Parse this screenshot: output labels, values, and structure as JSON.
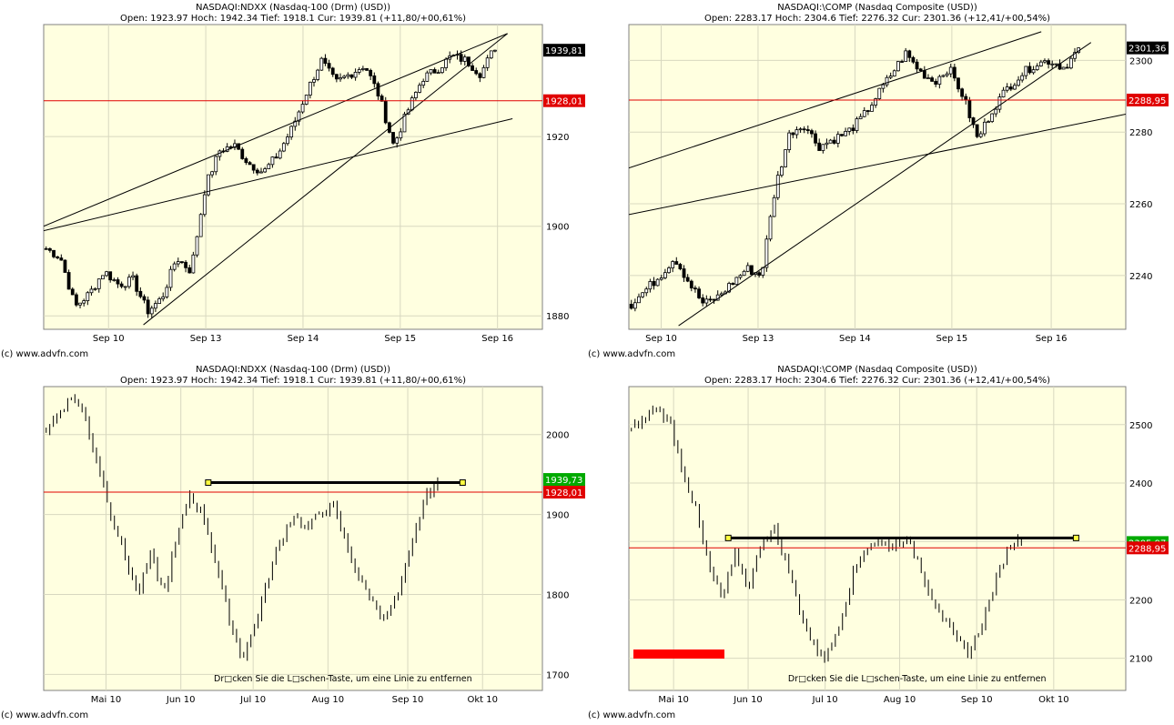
{
  "copyright": "(c) www.advfn.com",
  "colors": {
    "plot_bg": "#ffffe0",
    "grid": "#d8d8c0",
    "candle": "#000000",
    "red_line": "#e00000",
    "trend": "#000000",
    "badge_current": "#000000",
    "badge_red": "#e00000",
    "badge_green": "#00aa00",
    "marker_yellow": "#ffff40",
    "red_bar": "#ff0000"
  },
  "panels": [
    {
      "title": "NASDAQI:NDXX (Nasdaq-100 (Drm) (USD))",
      "subtitle": "Open: 1923.97 Hoch: 1942.34 Tief: 1918.1 Cur: 1939.81 (+11,80/+00,61%)",
      "copyright": "(c) www.advfn.com"
    },
    {
      "title": "NASDAQI:\\COMP (Nasdaq Composite (USD))",
      "subtitle": "Open: 2283.17 Hoch: 2304.6 Tief: 2276.32 Cur: 2301.36 (+12,41/+00,54%)",
      "copyright": "(c) www.advfn.com"
    },
    {
      "title": "NASDAQI:NDXX (Nasdaq-100 (Drm) (USD))",
      "subtitle": "Open: 1923.97 Hoch: 1942.34 Tief: 1918.1 Cur: 1939.81 (+11,80/+00,61%)",
      "copyright": "(c) www.advfn.com",
      "note": "Dr□cken Sie die L□schen-Taste, um eine Linie zu entfernen"
    },
    {
      "title": "NASDAQI:\\COMP (Nasdaq Composite (USD))",
      "subtitle": "Open: 2283.17 Hoch: 2304.6 Tief: 2276.32 Cur: 2301.36 (+12,41/+00,54%)",
      "copyright": "(c) www.advfn.com",
      "note": "Dr□cken Sie die L□schen-Taste, um eine Linie zu entfernen"
    }
  ],
  "chart_data": [
    {
      "type": "candlestick",
      "title": "NASDAQI:NDXX (Nasdaq-100 (Drm) (USD))",
      "subtitle": "Open: 1923.97 Hoch: 1942.34 Tief: 1918.1 Cur: 1939.81 (+11,80/+00,61%)",
      "x_ticks": [
        "Sep 10",
        "Sep 13",
        "Sep 14",
        "Sep 15",
        "Sep 16"
      ],
      "y_ticks": [
        1880,
        1900,
        1920
      ],
      "ylim": [
        1877,
        1945
      ],
      "grid": true,
      "current_value": "1939,81",
      "red_line": {
        "value": 1928.01,
        "label": "1928,01"
      },
      "price_path": [
        1895,
        1893,
        1882,
        1885,
        1890,
        1887,
        1888,
        1881,
        1884,
        1893,
        1890,
        1909,
        1917,
        1918,
        1914,
        1912,
        1916,
        1922,
        1930,
        1937,
        1932,
        1934,
        1936,
        1929,
        1918,
        1926,
        1933,
        1935,
        1938,
        1937,
        1934,
        1940
      ],
      "trendlines": [
        {
          "x0": 0.0,
          "y0": 1900,
          "x1": 0.93,
          "y1": 1943
        },
        {
          "x0": 0.0,
          "y0": 1899,
          "x1": 0.94,
          "y1": 1924
        },
        {
          "x0": 0.2,
          "y0": 1878,
          "x1": 0.93,
          "y1": 1943
        }
      ]
    },
    {
      "type": "candlestick",
      "title": "NASDAQI:\\COMP (Nasdaq Composite (USD))",
      "subtitle": "Open: 2283.17 Hoch: 2304.6 Tief: 2276.32 Cur: 2301.36 (+12,41/+00,54%)",
      "x_ticks": [
        "Sep 10",
        "Sep 13",
        "Sep 14",
        "Sep 15",
        "Sep 16"
      ],
      "y_ticks": [
        2240,
        2260,
        2280,
        2300
      ],
      "ylim": [
        2225,
        2310
      ],
      "grid": true,
      "current_value": "2301,36",
      "red_line": {
        "value": 2288.95,
        "label": "2288,95"
      },
      "price_path": [
        2232,
        2236,
        2240,
        2245,
        2238,
        2232,
        2234,
        2238,
        2242,
        2240,
        2265,
        2280,
        2282,
        2276,
        2278,
        2280,
        2284,
        2290,
        2296,
        2302,
        2297,
        2294,
        2298,
        2290,
        2278,
        2286,
        2292,
        2296,
        2299,
        2300,
        2298,
        2303
      ],
      "trendlines": [
        {
          "x0": 0.0,
          "y0": 2270,
          "x1": 0.83,
          "y1": 2308
        },
        {
          "x0": 0.0,
          "y0": 2257,
          "x1": 1.0,
          "y1": 2285
        },
        {
          "x0": 0.1,
          "y0": 2226,
          "x1": 0.93,
          "y1": 2305
        }
      ]
    },
    {
      "type": "ohlc",
      "title": "NASDAQI:NDXX (Nasdaq-100 (Drm) (USD))",
      "subtitle": "Open: 1923.97 Hoch: 1942.34 Tief: 1918.1 Cur: 1939.81 (+11,80/+00,61%)",
      "x_ticks": [
        "Mai 10",
        "Jun 10",
        "Jul 10",
        "Aug 10",
        "Sep 10",
        "Okt 10"
      ],
      "y_ticks": [
        1700,
        1800,
        1900,
        2000
      ],
      "ylim": [
        1680,
        2060
      ],
      "grid": true,
      "current_value": "1939,73",
      "red_line": {
        "value": 1928.01,
        "label": "1928,01"
      },
      "horizontal_line": {
        "value": 1940,
        "x0": 0.33,
        "x1": 0.84
      },
      "price_path": [
        2005,
        2030,
        2048,
        2020,
        1960,
        1900,
        1850,
        1800,
        1850,
        1800,
        1870,
        1925,
        1900,
        1840,
        1770,
        1720,
        1760,
        1820,
        1870,
        1900,
        1880,
        1905,
        1910,
        1860,
        1820,
        1790,
        1770,
        1800,
        1860,
        1920,
        1939
      ]
    },
    {
      "type": "ohlc",
      "title": "NASDAQI:\\COMP (Nasdaq Composite (USD))",
      "subtitle": "Open: 2283.17 Hoch: 2304.6 Tief: 2276.32 Cur: 2301.36 (+12,41/+00,54%)",
      "x_ticks": [
        "Mai 10",
        "Jun 10",
        "Jul 10",
        "Aug 10",
        "Sep 10",
        "Okt 10"
      ],
      "y_ticks": [
        2100,
        2200,
        2300,
        2400,
        2500
      ],
      "ylim": [
        2045,
        2565
      ],
      "grid": true,
      "current_value": "2305,97",
      "red_line": {
        "value": 2288.95,
        "label": "2288,95"
      },
      "horizontal_line": {
        "value": 2306,
        "x0": 0.2,
        "x1": 0.9
      },
      "price_path": [
        2490,
        2510,
        2530,
        2500,
        2420,
        2350,
        2250,
        2200,
        2280,
        2220,
        2300,
        2320,
        2260,
        2180,
        2120,
        2100,
        2160,
        2240,
        2290,
        2300,
        2290,
        2305,
        2270,
        2210,
        2170,
        2130,
        2110,
        2160,
        2230,
        2290,
        2305
      ]
    }
  ]
}
